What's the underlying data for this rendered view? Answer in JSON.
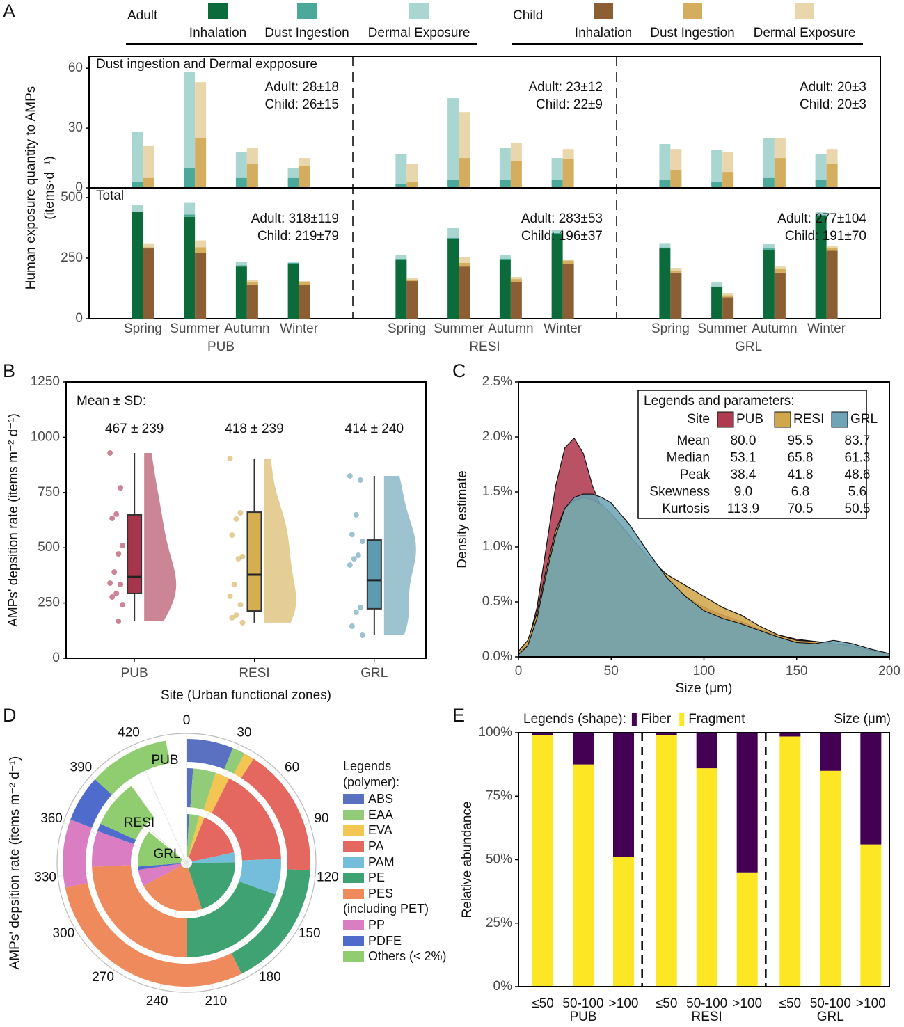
{
  "chart_data": [
    {
      "panel": "A",
      "type": "grouped-stacked-bar",
      "sites": [
        "PUB",
        "RESI",
        "GRL"
      ],
      "categories": [
        "Spring",
        "Summer",
        "Autumn",
        "Winter",
        "Spring",
        "Summer",
        "Autumn",
        "Winter",
        "Spring",
        "Summer",
        "Autumn",
        "Winter"
      ],
      "groups": [
        {
          "name": "Adult",
          "series": [
            {
              "name": "Inhalation",
              "color": "#0b6b3a",
              "values": [
                440,
                420,
                215,
                225,
                245,
                330,
                244,
                350,
                290,
                130,
                285,
                425
              ]
            },
            {
              "name": "Dust Ingestion",
              "color": "#4aa99b",
              "values": [
                3,
                10,
                5,
                5,
                2,
                4,
                4,
                4,
                4,
                3,
                5,
                4
              ]
            },
            {
              "name": "Dermal Exposure",
              "color": "#a9d6d1",
              "values": [
                25,
                48,
                13,
                5,
                15,
                41,
                16,
                11,
                18,
                16,
                20,
                13
              ]
            }
          ]
        },
        {
          "name": "Child",
          "series": [
            {
              "name": "Inhalation",
              "color": "#8b5e34",
              "values": [
                290,
                270,
                140,
                140,
                155,
                215,
                150,
                225,
                190,
                88,
                190,
                280
              ]
            },
            {
              "name": "Dust Ingestion",
              "color": "#d4ad5f",
              "values": [
                5,
                25,
                12,
                11,
                3,
                15,
                13.5,
                14.5,
                9,
                8,
                15,
                12
              ]
            },
            {
              "name": "Dermal Exposure",
              "color": "#e9d6ac",
              "values": [
                16,
                28,
                8,
                4,
                9,
                23,
                9,
                5,
                10.5,
                10,
                10,
                7.5
              ]
            }
          ]
        }
      ],
      "panels": [
        {
          "title": "Dust ingestion and Dermal expposure",
          "ylim": [
            0,
            66
          ],
          "yticks": [
            0,
            30,
            60
          ],
          "annotations": [
            [
              "Adult: 28±18",
              "Child: 26±15"
            ],
            [
              "Adult: 23±12",
              "Child: 22±9"
            ],
            [
              "Adult: 20±3",
              "Child: 20±3"
            ]
          ]
        },
        {
          "title": "Total",
          "ylim": [
            0,
            540
          ],
          "yticks": [
            0,
            250,
            500
          ],
          "annotations": [
            [
              "Adult: 318±119",
              "Child: 219±79"
            ],
            [
              "Adult: 283±53",
              "Child: 196±37"
            ],
            [
              "Adult: 277±104",
              "Child: 191±70"
            ]
          ]
        }
      ],
      "ylabel": [
        "Human exposure quantity to AMPs",
        "(items·d⁻¹)"
      ]
    },
    {
      "panel": "B",
      "type": "raincloud",
      "categories": [
        "PUB",
        "RESI",
        "GRL"
      ],
      "colors": [
        "#a8344c",
        "#d4ae4f",
        "#5d9bb1"
      ],
      "mean_label": "Mean ± SD:",
      "annotations": [
        "467 ± 239",
        "418 ± 239",
        "414 ± 240"
      ],
      "points": [
        [
          929,
          771,
          652,
          633,
          510,
          472,
          390,
          340,
          334,
          293,
          277,
          242,
          167
        ],
        [
          904,
          658,
          630,
          557,
          460,
          450,
          334,
          280,
          242,
          195,
          183,
          161
        ],
        [
          825,
          806,
          649,
          560,
          529,
          466,
          450,
          422,
          230,
          208,
          145,
          104
        ]
      ],
      "boxes": [
        {
          "low": 170,
          "q1": 293,
          "median": 368,
          "q3": 649,
          "high": 929
        },
        {
          "low": 161,
          "q1": 214,
          "median": 378,
          "q3": 661,
          "high": 904
        },
        {
          "low": 104,
          "q1": 224,
          "median": 353,
          "q3": 535,
          "high": 825
        }
      ],
      "ylim": [
        0,
        1250
      ],
      "yticks": [
        0,
        250,
        500,
        750,
        1000,
        1250
      ],
      "xlabel": "Site (Urban functional zones)",
      "ylabel": "AMPs' depsition rate (items m⁻² d⁻¹)"
    },
    {
      "panel": "C",
      "type": "density",
      "x": [
        0,
        5,
        10,
        15,
        20,
        25,
        30,
        35,
        40,
        45,
        50,
        60,
        70,
        80,
        90,
        100,
        110,
        120,
        130,
        140,
        150,
        160,
        170,
        180,
        190,
        200
      ],
      "series": [
        {
          "name": "PUB",
          "color": "#b03a50",
          "values": [
            0.03,
            0.12,
            0.45,
            1.0,
            1.55,
            1.9,
            1.99,
            1.85,
            1.55,
            1.35,
            1.3,
            1.1,
            0.85,
            0.68,
            0.55,
            0.45,
            0.38,
            0.32,
            0.25,
            0.2,
            0.16,
            0.14,
            0.12,
            0.1,
            0.06,
            0.02
          ]
        },
        {
          "name": "RESI",
          "color": "#d1a74c",
          "values": [
            0.05,
            0.15,
            0.4,
            0.8,
            1.15,
            1.35,
            1.42,
            1.45,
            1.43,
            1.38,
            1.3,
            1.1,
            0.9,
            0.75,
            0.65,
            0.55,
            0.45,
            0.38,
            0.28,
            0.2,
            0.15,
            0.14,
            0.12,
            0.1,
            0.06,
            0.02
          ]
        },
        {
          "name": "GRL",
          "color": "#6ea4b5",
          "values": [
            0.02,
            0.1,
            0.35,
            0.75,
            1.1,
            1.35,
            1.45,
            1.48,
            1.48,
            1.45,
            1.4,
            1.2,
            0.95,
            0.72,
            0.55,
            0.42,
            0.35,
            0.3,
            0.24,
            0.18,
            0.13,
            0.12,
            0.15,
            0.12,
            0.07,
            0.03
          ]
        }
      ],
      "xlim": [
        0,
        200
      ],
      "xticks": [
        0,
        50,
        100,
        150,
        200
      ],
      "ylim": [
        0,
        2.5
      ],
      "yticks": [
        {
          "value": 0,
          "label": "0.0%"
        },
        {
          "value": 0.5,
          "label": "0.5%"
        },
        {
          "value": 1,
          "label": "1.0%"
        },
        {
          "value": 1.5,
          "label": "1.5%"
        },
        {
          "value": 2,
          "label": "2.0%"
        },
        {
          "value": 2.5,
          "label": "2.5%"
        }
      ],
      "xlabel": "Size (μm)",
      "ylabel": "Density estimate",
      "legend": {
        "title": "Legends and parameters:",
        "header": "Site",
        "rows": [
          {
            "label": "Mean",
            "values": [
              "80.0",
              "95.5",
              "83.7"
            ]
          },
          {
            "label": "Median",
            "values": [
              "53.1",
              "65.8",
              "61.3"
            ]
          },
          {
            "label": "Peak",
            "values": [
              "38.4",
              "41.8",
              "48.6"
            ]
          },
          {
            "label": "Skewness",
            "values": [
              "9.0",
              "6.8",
              "5.6"
            ]
          },
          {
            "label": "Kurtosis",
            "values": [
              "113.9",
              "70.5",
              "50.5"
            ]
          }
        ]
      }
    },
    {
      "panel": "D",
      "type": "polar-rings",
      "rings": [
        "PUB",
        "RESI",
        "GRL"
      ],
      "series": [
        {
          "name": "ABS",
          "color": "#5a70c1",
          "values": [
            27.5,
            5,
            4
          ]
        },
        {
          "name": "EAA",
          "color": "#93cc78",
          "values": [
            7.5,
            17.5,
            15
          ]
        },
        {
          "name": "EVA",
          "color": "#f3c553",
          "values": [
            6,
            11,
            8
          ]
        },
        {
          "name": "PA",
          "color": "#e4685f",
          "values": [
            76,
            76,
            70
          ]
        },
        {
          "name": "PAM",
          "color": "#74bedb",
          "values": [
            0,
            27.5,
            15
          ]
        },
        {
          "name": "PE",
          "color": "#3ea272",
          "values": [
            75,
            87.5,
            90
          ]
        },
        {
          "name": "PES",
          "note": "(including PET)",
          "color": "#ef8a5d",
          "values": [
            131,
            110,
            100
          ]
        },
        {
          "name": "PP",
          "color": "#da7dc3",
          "values": [
            40,
            27.5,
            25
          ]
        },
        {
          "name": "PDFE",
          "color": "#4f6ccc",
          "values": [
            27.5,
            6,
            5
          ]
        },
        {
          "name": "Others (< 2%)",
          "color": "#8fcd70",
          "values": [
            47.5,
            37.5,
            55
          ]
        }
      ],
      "xlim": [
        0,
        450
      ],
      "xticks": [
        0,
        30,
        60,
        90,
        120,
        150,
        180,
        210,
        240,
        270,
        300,
        330,
        360,
        390,
        420
      ],
      "legend_title": "Legends (polymer):",
      "ylabel": "AMPs' depsition rate (items m⁻² d⁻¹)"
    },
    {
      "panel": "E",
      "type": "stacked-bar-100",
      "groups": [
        "PUB",
        "RESI",
        "GRL"
      ],
      "categories": [
        "≤50",
        "50-100",
        ">100",
        "≤50",
        "50-100",
        ">100",
        "≤50",
        "50-100",
        ">100"
      ],
      "series": [
        {
          "name": "Fiber",
          "color": "#440154",
          "values": [
            1,
            12.5,
            49,
            1,
            14,
            55,
            1.5,
            15,
            44
          ]
        },
        {
          "name": "Fragment",
          "color": "#fde725",
          "values": [
            99,
            87.5,
            51,
            99,
            86,
            45,
            98.5,
            85,
            56
          ]
        }
      ],
      "ylim": [
        0,
        100
      ],
      "yticks": [
        {
          "value": 0,
          "label": "0%"
        },
        {
          "value": 25,
          "label": "25%"
        },
        {
          "value": 50,
          "label": "50%"
        },
        {
          "value": 75,
          "label": "75%"
        },
        {
          "value": 100,
          "label": "100%"
        }
      ],
      "legend_title": "Legends (shape):",
      "xlabel": "Size (μm)",
      "ylabel": "Relative abundance"
    }
  ]
}
